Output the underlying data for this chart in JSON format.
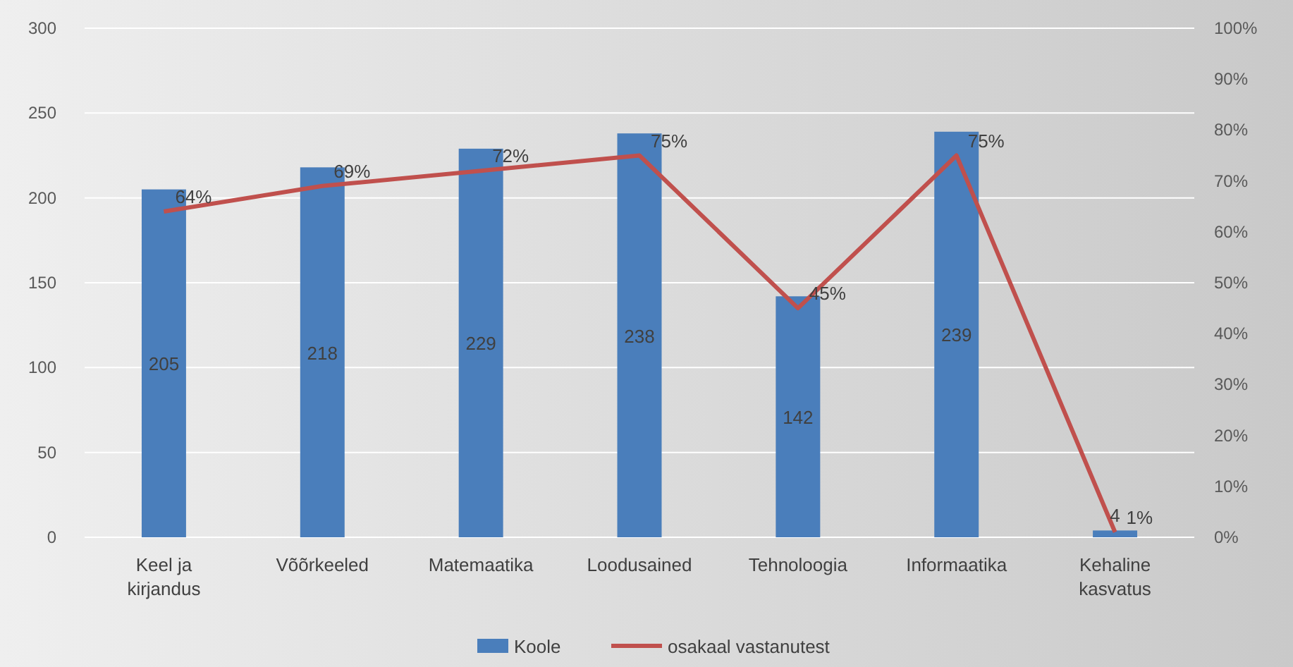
{
  "chart_data": {
    "type": "bar",
    "categories": [
      "Keel ja kirjandus",
      "Võõrkeeled",
      "Matemaatika",
      "Loodusained",
      "Tehnoloogia",
      "Informaatika",
      "Kehaline kasvatus"
    ],
    "series": [
      {
        "name": "Koole",
        "color": "#4a7ebb",
        "values": [
          205,
          218,
          229,
          238,
          142,
          239,
          4
        ],
        "value_labels": [
          "205",
          "218",
          "229",
          "238",
          "142",
          "239",
          "4"
        ]
      },
      {
        "name": "osakaal vastanutest",
        "type": "line",
        "axis": "y2",
        "color": "#c0504d",
        "values": [
          64,
          69,
          72,
          75,
          45,
          75,
          1
        ],
        "value_labels": [
          "64%",
          "69%",
          "72%",
          "75%",
          "45%",
          "75%",
          "1%"
        ]
      }
    ],
    "ylim": [
      0,
      300
    ],
    "yticks": [
      0,
      50,
      100,
      150,
      200,
      250,
      300
    ],
    "y2lim": [
      0,
      100
    ],
    "y2ticks": [
      {
        "value": 0,
        "label": "0%"
      },
      {
        "value": 10,
        "label": "10%"
      },
      {
        "value": 20,
        "label": "20%"
      },
      {
        "value": 30,
        "label": "30%"
      },
      {
        "value": 40,
        "label": "40%"
      },
      {
        "value": 50,
        "label": "50%"
      },
      {
        "value": 60,
        "label": "60%"
      },
      {
        "value": 70,
        "label": "70%"
      },
      {
        "value": 80,
        "label": "80%"
      },
      {
        "value": 90,
        "label": "90%"
      },
      {
        "value": 100,
        "label": "100%"
      }
    ],
    "grid": "y",
    "legend": "bottom",
    "marker": "none",
    "line_style": "solid"
  }
}
